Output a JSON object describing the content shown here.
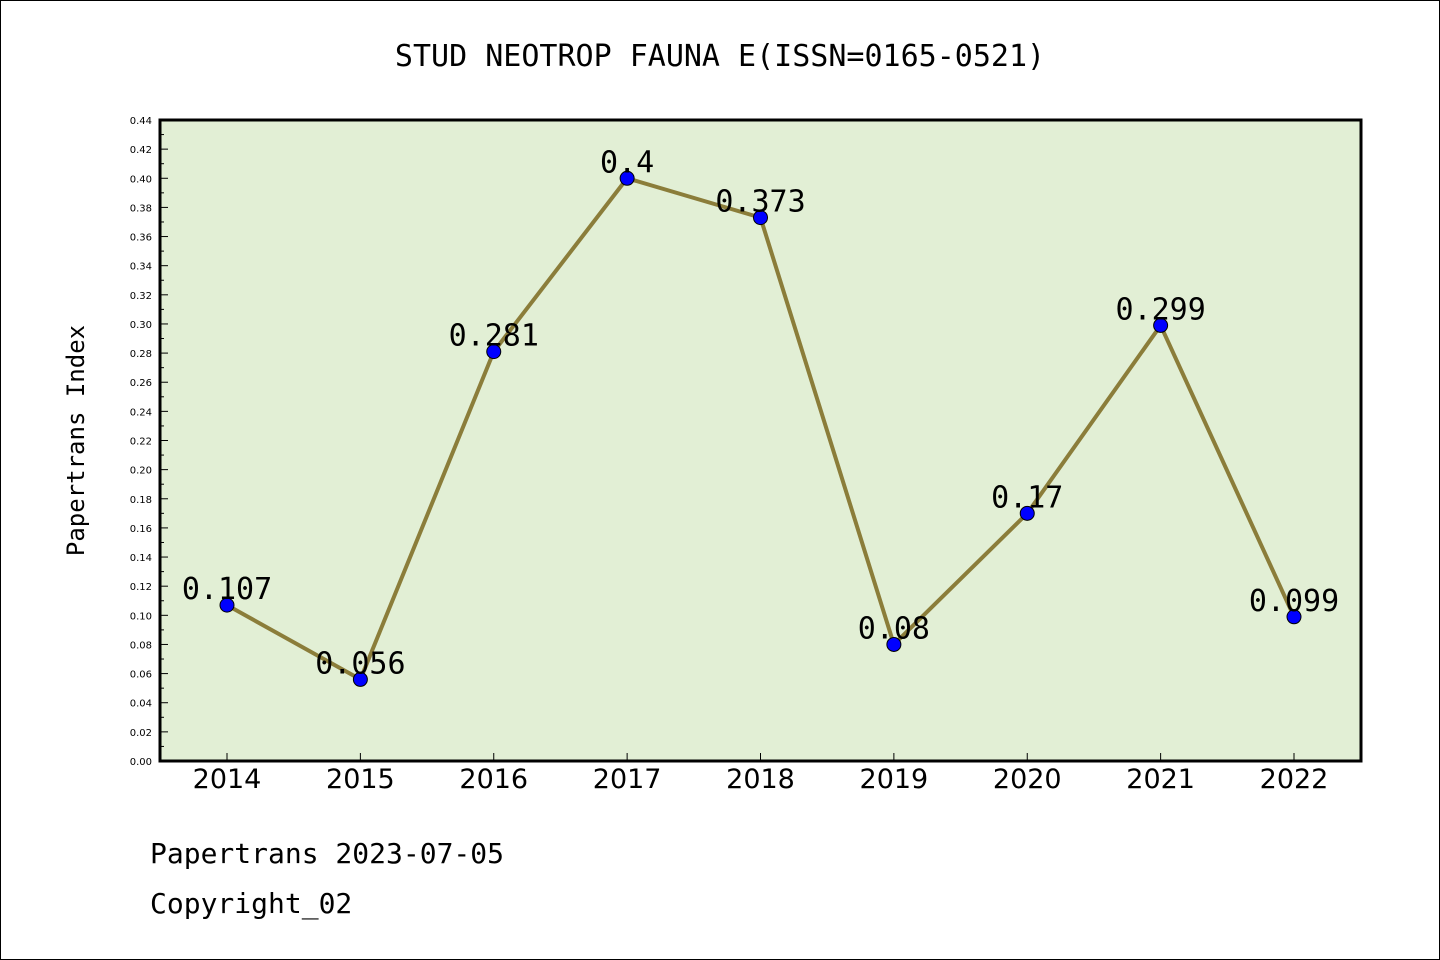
{
  "chart_data": {
    "type": "line",
    "title": "STUD NEOTROP FAUNA E(ISSN=0165-0521)",
    "xlabel": "",
    "ylabel": "Papertrans Index",
    "categories": [
      "2014",
      "2015",
      "2016",
      "2017",
      "2018",
      "2019",
      "2020",
      "2021",
      "2022"
    ],
    "values": [
      0.107,
      0.056,
      0.281,
      0.4,
      0.373,
      0.08,
      0.17,
      0.299,
      0.099
    ],
    "data_labels": [
      "0.107",
      "0.056",
      "0.281",
      "0.4",
      "0.373",
      "0.08",
      "0.17",
      "0.299",
      "0.099"
    ],
    "ylim": [
      0,
      0.44
    ],
    "ytick_step": 0.02,
    "grid": false,
    "colors": {
      "plot_background": "#e2efd5",
      "line": "#8b7d3a",
      "marker": "#0000ff"
    }
  },
  "footer": {
    "line1": "Papertrans 2023-07-05",
    "line2": "Copyright_02"
  }
}
